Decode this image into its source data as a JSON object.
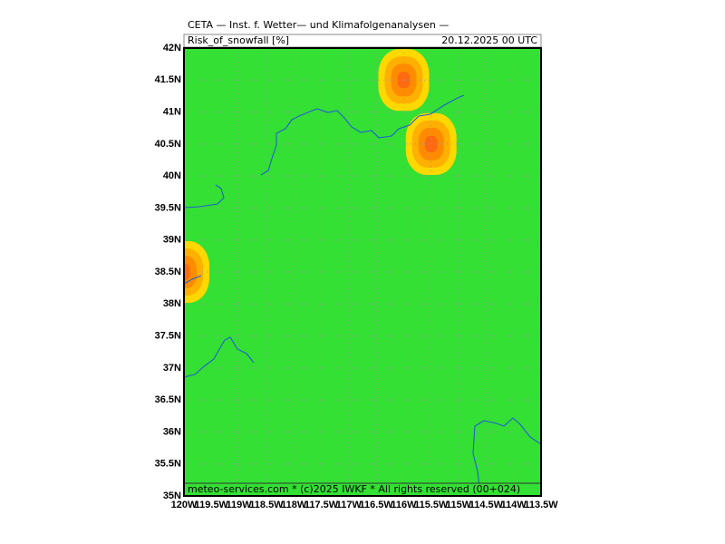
{
  "chart_data": {
    "type": "map",
    "title": "CETA — Inst. f. Wetter— und Klimafolgenanalysen —",
    "subtitle": "Risk_of_snowfall [%]",
    "date": "20.12.2025 00 UTC",
    "footer": "meteo-services.com * (c)2025 IWKF * All rights reserved (00+024)",
    "background_color": "#33e033",
    "xlim": [
      -120,
      -113.5
    ],
    "ylim": [
      35,
      42
    ],
    "xticks": [
      {
        "value": -120,
        "label": "120W"
      },
      {
        "value": -119.5,
        "label": "119.5W"
      },
      {
        "value": -119,
        "label": "119W"
      },
      {
        "value": -118.5,
        "label": "118.5W"
      },
      {
        "value": -118,
        "label": "118W"
      },
      {
        "value": -117.5,
        "label": "117.5W"
      },
      {
        "value": -117,
        "label": "117W"
      },
      {
        "value": -116.5,
        "label": "116.5W"
      },
      {
        "value": -116,
        "label": "116W"
      },
      {
        "value": -115.5,
        "label": "115.5W"
      },
      {
        "value": -115,
        "label": "115W"
      },
      {
        "value": -114.5,
        "label": "114.5W"
      },
      {
        "value": -114,
        "label": "114W"
      },
      {
        "value": -113.5,
        "label": "113.5W"
      }
    ],
    "yticks": [
      {
        "value": 35,
        "label": "35N"
      },
      {
        "value": 35.5,
        "label": "35.5N"
      },
      {
        "value": 36,
        "label": "36N"
      },
      {
        "value": 36.5,
        "label": "36.5N"
      },
      {
        "value": 37,
        "label": "37N"
      },
      {
        "value": 37.5,
        "label": "37.5N"
      },
      {
        "value": 38,
        "label": "38N"
      },
      {
        "value": 38.5,
        "label": "38.5N"
      },
      {
        "value": 39,
        "label": "39N"
      },
      {
        "value": 39.5,
        "label": "39.5N"
      },
      {
        "value": 40,
        "label": "40N"
      },
      {
        "value": 40.5,
        "label": "40.5N"
      },
      {
        "value": 41,
        "label": "41N"
      },
      {
        "value": 41.5,
        "label": "41.5N"
      },
      {
        "value": 42,
        "label": "42N"
      }
    ],
    "grid": true,
    "level_colors": [
      "#ffd800",
      "#ffb000",
      "#ff8c00",
      "#ff6a10"
    ],
    "hotspots": [
      {
        "lon": -116,
        "lat": 41.5
      },
      {
        "lon": -115.5,
        "lat": 40.5
      },
      {
        "lon": -120,
        "lat": 38.5
      }
    ]
  }
}
